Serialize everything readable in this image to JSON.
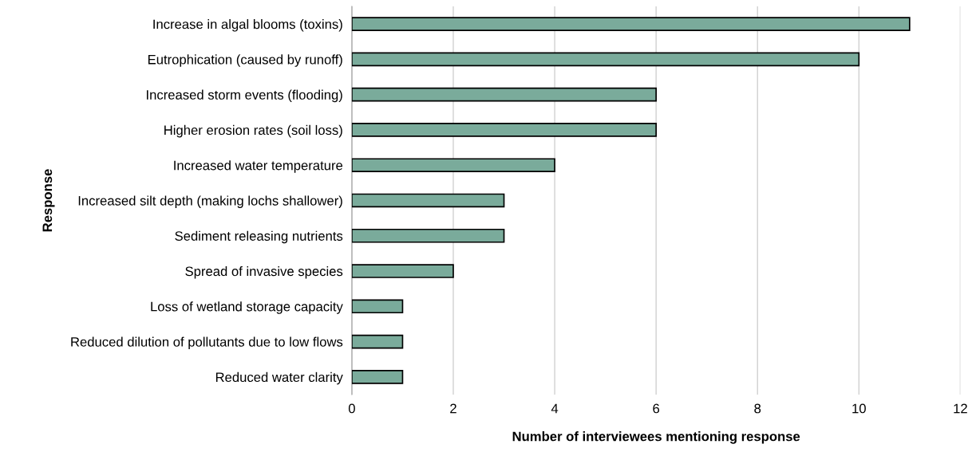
{
  "chart_data": {
    "type": "bar",
    "orientation": "horizontal",
    "xlabel": "Number of interviewees mentioning response",
    "ylabel": "Response",
    "categories": [
      "Increase in algal blooms (toxins)",
      "Eutrophication (caused by runoff)",
      "Increased storm events (flooding)",
      "Higher erosion rates (soil loss)",
      "Increased water temperature",
      "Increased silt depth (making lochs shallower)",
      "Sediment releasing nutrients",
      "Spread of invasive species",
      "Loss of wetland storage capacity",
      "Reduced dilution of pollutants due to low flows",
      "Reduced water clarity"
    ],
    "values": [
      11,
      10,
      6,
      6,
      4,
      3,
      3,
      2,
      1,
      1,
      1
    ],
    "color": "#7aab9b",
    "xlim": [
      0,
      12
    ],
    "xticks": [
      0,
      2,
      4,
      6,
      8,
      10,
      12
    ],
    "grid": "x",
    "legend": false
  }
}
